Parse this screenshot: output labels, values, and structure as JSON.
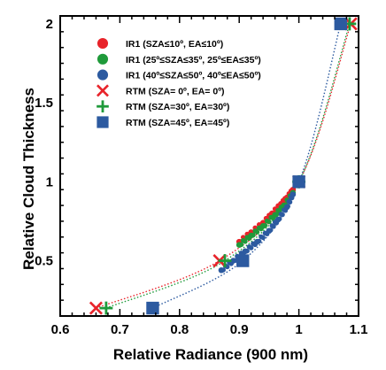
{
  "chart_data": {
    "type": "scatter",
    "title": "",
    "xlabel": "Relative Radiance (900 nm)",
    "ylabel": "Relative Cloud Thickness",
    "xlim": [
      0.6,
      1.1
    ],
    "ylim": [
      0.15,
      2.05
    ],
    "xticks": [
      0.6,
      0.7,
      0.8,
      0.9,
      1.0,
      1.1
    ],
    "xtick_labels": [
      "0.6",
      "0.7",
      "0.8",
      "0.9",
      "1",
      "1.1"
    ],
    "yticks": [
      0.5,
      1.0,
      1.5,
      2.0
    ],
    "ytick_labels": [
      "0.5",
      "1",
      "1.5",
      "2"
    ],
    "grid": false,
    "legend_position": "top-left",
    "series": [
      {
        "name": "IR1 (SZA≤10º, EA≤10º)",
        "marker": "circle",
        "color": "#e8232a",
        "x": [
          0.9,
          0.92,
          0.94,
          0.955,
          0.97,
          0.98,
          0.99
        ],
        "y": [
          0.62,
          0.68,
          0.74,
          0.8,
          0.86,
          0.9,
          0.95
        ]
      },
      {
        "name": "IR1 (25º≤SZA≤35º, 25º≤EA≤35º)",
        "marker": "circle",
        "color": "#1f9a3a",
        "x": [
          0.9,
          0.92,
          0.94,
          0.96,
          0.975,
          0.99
        ],
        "y": [
          0.6,
          0.66,
          0.72,
          0.79,
          0.85,
          0.93
        ]
      },
      {
        "name": "IR1 (40º≤SZA≤50º, 40º≤EA≤50º)",
        "marker": "circle",
        "color": "#2c5aa0",
        "x": [
          0.87,
          0.89,
          0.91,
          0.93,
          0.95,
          0.965,
          0.98,
          0.99
        ],
        "y": [
          0.44,
          0.5,
          0.56,
          0.62,
          0.69,
          0.76,
          0.84,
          0.92
        ]
      },
      {
        "name": "RTM (SZA= 0º, EA= 0º)",
        "marker": "x",
        "color": "#e8232a",
        "x": [
          0.66,
          0.867,
          1.0,
          1.087
        ],
        "y": [
          0.2,
          0.5,
          1.0,
          2.0
        ]
      },
      {
        "name": "RTM (SZA=30º, EA=30º)",
        "marker": "plus",
        "color": "#1f9a3a",
        "x": [
          0.677,
          0.876,
          1.0,
          1.085
        ],
        "y": [
          0.2,
          0.5,
          1.0,
          2.0
        ]
      },
      {
        "name": "RTM (SZA=45º, EA=45º)",
        "marker": "square",
        "color": "#2c5aa0",
        "x": [
          0.755,
          0.906,
          1.0,
          1.07
        ],
        "y": [
          0.2,
          0.5,
          1.0,
          2.0
        ]
      }
    ]
  }
}
